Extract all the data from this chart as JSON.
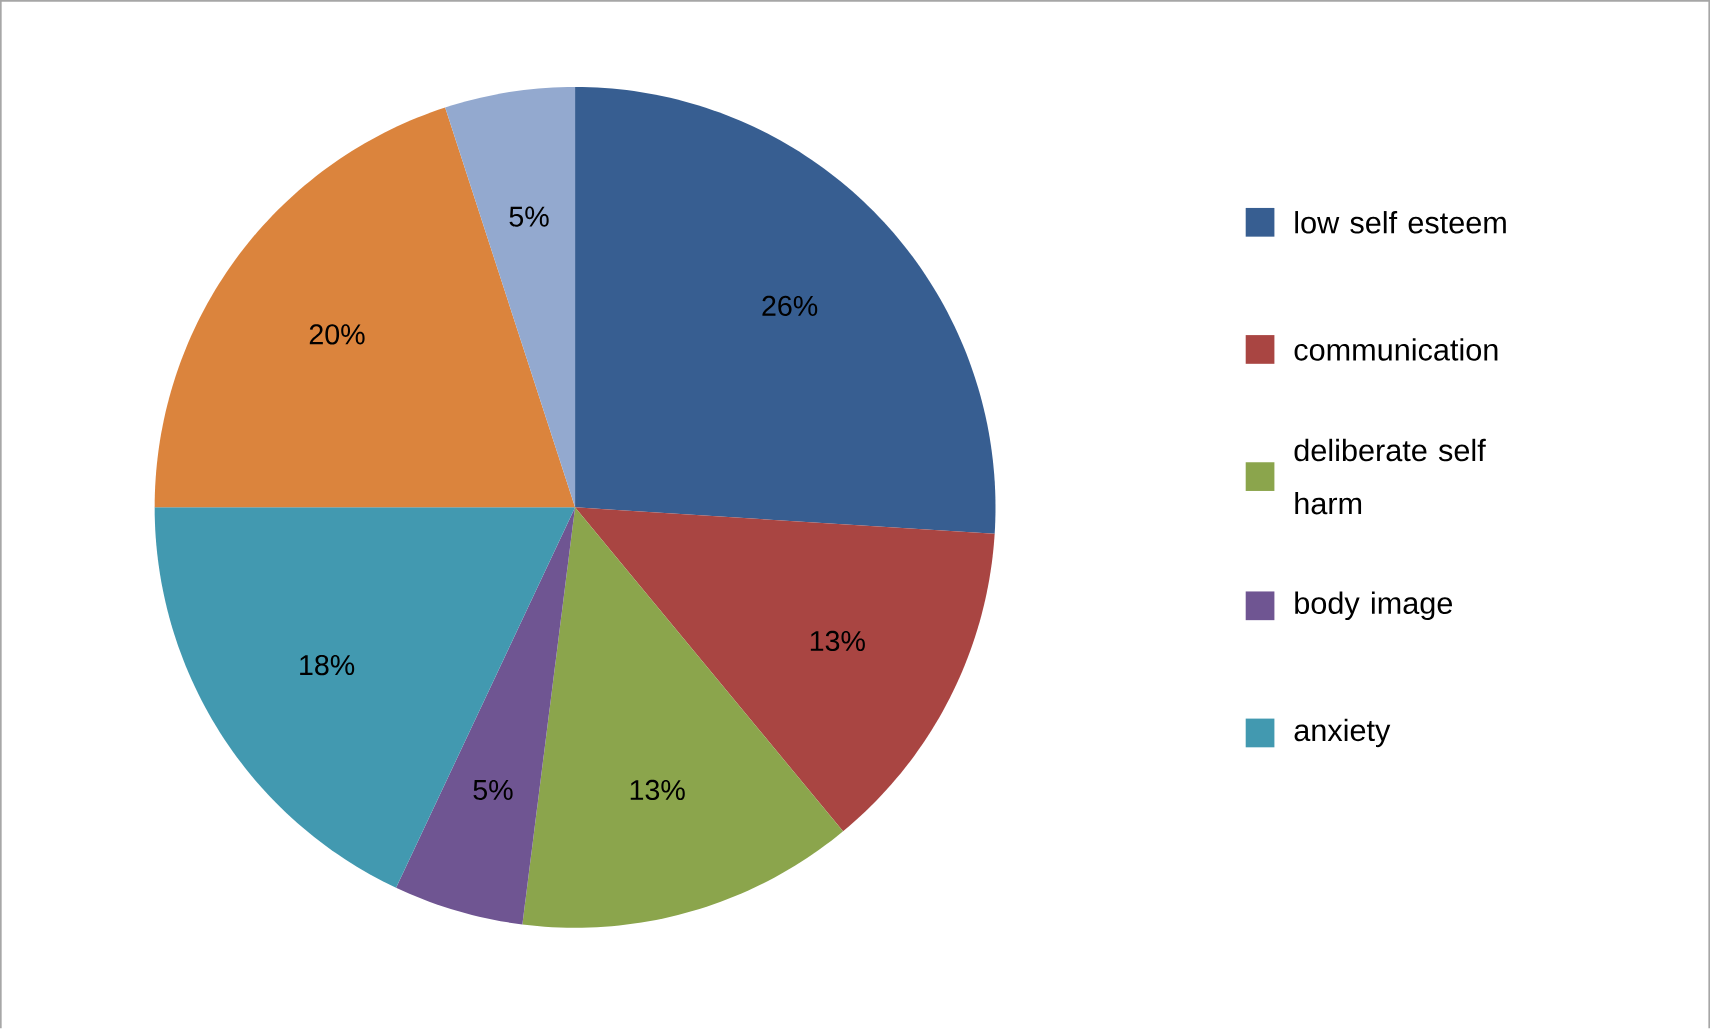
{
  "chart_data": {
    "type": "pie",
    "categories": [
      "low self esteem",
      "communication",
      "deliberate self harm",
      "body image",
      "anxiety",
      null,
      null
    ],
    "values": [
      26,
      13,
      13,
      5,
      18,
      20,
      5
    ],
    "value_labels": [
      "26%",
      "13%",
      "13%",
      "5%",
      "18%",
      "20%",
      "5%"
    ],
    "colors": [
      "#375e91",
      "#a94542",
      "#8ba54c",
      "#6f5592",
      "#4299b0",
      "#db843d",
      "#93a9cf"
    ],
    "legend": "right"
  }
}
